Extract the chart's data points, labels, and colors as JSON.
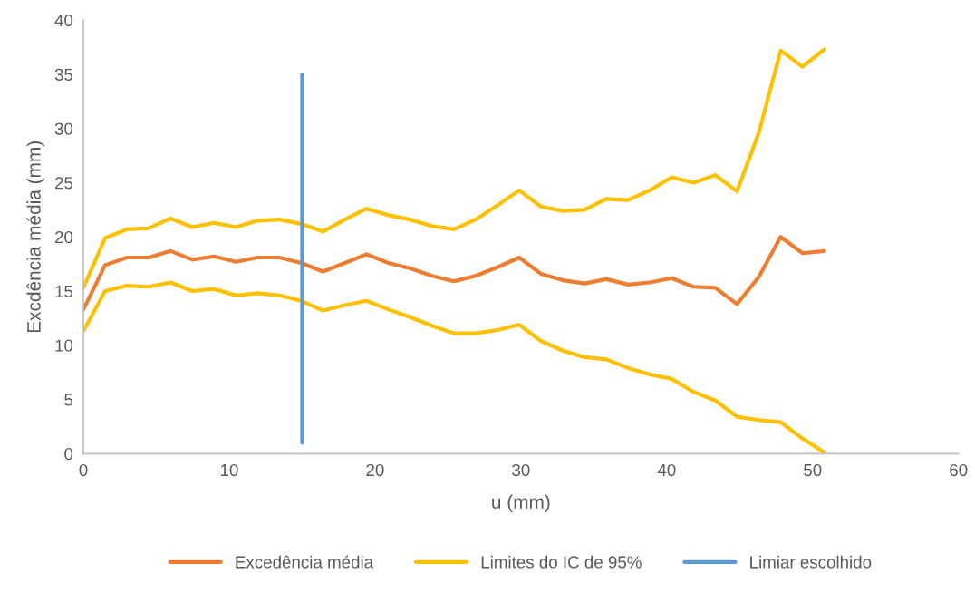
{
  "chart_data": {
    "type": "line",
    "xlabel": "u (mm)",
    "ylabel": "Excdência média (mm)",
    "xlim": [
      0,
      60
    ],
    "xticks": [
      0,
      10,
      20,
      30,
      40,
      50,
      60
    ],
    "ylim": [
      0,
      40
    ],
    "yticks": [
      0,
      5,
      10,
      15,
      20,
      25,
      30,
      35,
      40
    ],
    "grid": false,
    "legend": "bottom",
    "line_style": "solid",
    "marker": "none",
    "x": [
      0,
      1.49,
      2.99,
      4.48,
      5.98,
      7.47,
      8.96,
      10.46,
      11.95,
      13.45,
      14.94,
      16.43,
      17.93,
      19.42,
      20.92,
      22.41,
      23.9,
      25.4,
      26.89,
      28.39,
      29.88,
      31.37,
      32.87,
      34.36,
      35.86,
      37.35,
      38.84,
      40.34,
      41.83,
      43.33,
      44.82,
      46.31,
      47.81,
      49.3,
      50.8
    ],
    "series": [
      {
        "name": "Excedência média",
        "color": "#ed7d31",
        "values": [
          13.3,
          17.4,
          18.1,
          18.1,
          18.7,
          17.9,
          18.2,
          17.7,
          18.1,
          18.1,
          17.6,
          16.8,
          17.6,
          18.4,
          17.6,
          17.1,
          16.4,
          15.9,
          16.4,
          17.2,
          18.1,
          16.6,
          16.0,
          15.7,
          16.1,
          15.6,
          15.8,
          16.2,
          15.4,
          15.3,
          13.8,
          16.3,
          20.0,
          18.5,
          18.7
        ]
      },
      {
        "name": "Limites do IC de 95%",
        "color": "#ffc000",
        "values": [
          15.3,
          19.9,
          20.7,
          20.8,
          21.7,
          20.9,
          21.3,
          20.9,
          21.5,
          21.6,
          21.2,
          20.5,
          21.6,
          22.6,
          22.0,
          21.6,
          21.0,
          20.7,
          21.6,
          22.9,
          24.3,
          22.8,
          22.4,
          22.5,
          23.5,
          23.4,
          24.3,
          25.5,
          25.0,
          25.7,
          24.2,
          29.6,
          37.2,
          35.7,
          37.3
        ]
      },
      {
        "color": "#ffc000",
        "values": [
          11.3,
          15.0,
          15.5,
          15.4,
          15.8,
          15.0,
          15.2,
          14.6,
          14.8,
          14.6,
          14.1,
          13.2,
          13.7,
          14.1,
          13.3,
          12.6,
          11.8,
          11.1,
          11.1,
          11.4,
          11.9,
          10.4,
          9.5,
          8.9,
          8.7,
          7.9,
          7.3,
          6.9,
          5.7,
          4.9,
          3.4,
          3.1,
          2.9,
          1.4,
          0.1
        ]
      },
      {
        "name": "Limiar escolhido",
        "color": "#5b9bd5",
        "x": [
          15,
          15
        ],
        "values": [
          1,
          35
        ]
      }
    ]
  }
}
